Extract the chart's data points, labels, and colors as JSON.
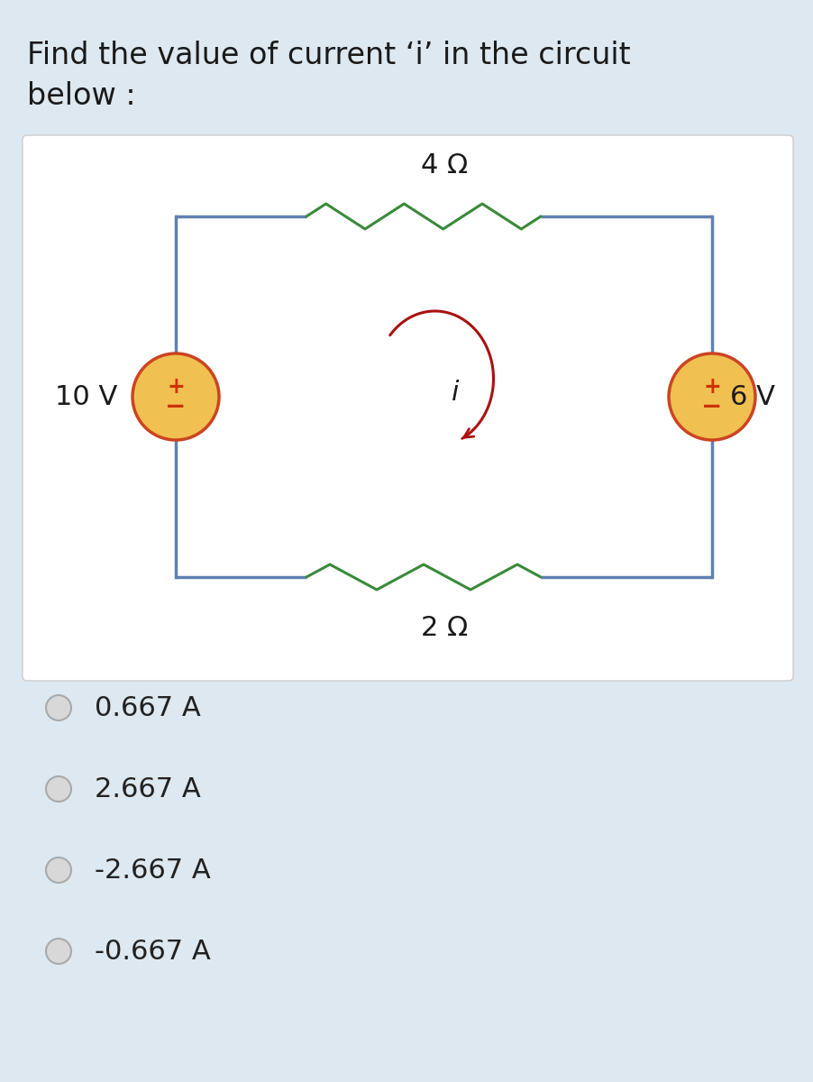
{
  "bg_color": "#dde8f0",
  "circuit_bg": "#ffffff",
  "title_line1": "Find the value of current ‘i’ in the circuit",
  "title_line2": "below :",
  "title_fontsize": 24,
  "title_color": "#1a1a1a",
  "wire_color": "#6080b0",
  "resistor_color": "#3a8a3a",
  "battery_fill": "#f0c050",
  "battery_outline": "#cc4422",
  "plus_minus_color": "#cc3300",
  "arrow_color": "#aa1111",
  "label_color": "#1a1a1a",
  "options": [
    "0.667 A",
    "2.667 A",
    "-2.667 A",
    "-0.667 A"
  ],
  "option_fontsize": 22,
  "option_color": "#222222",
  "radio_fill": "#d8d8d8",
  "radio_edge": "#aaaaaa"
}
